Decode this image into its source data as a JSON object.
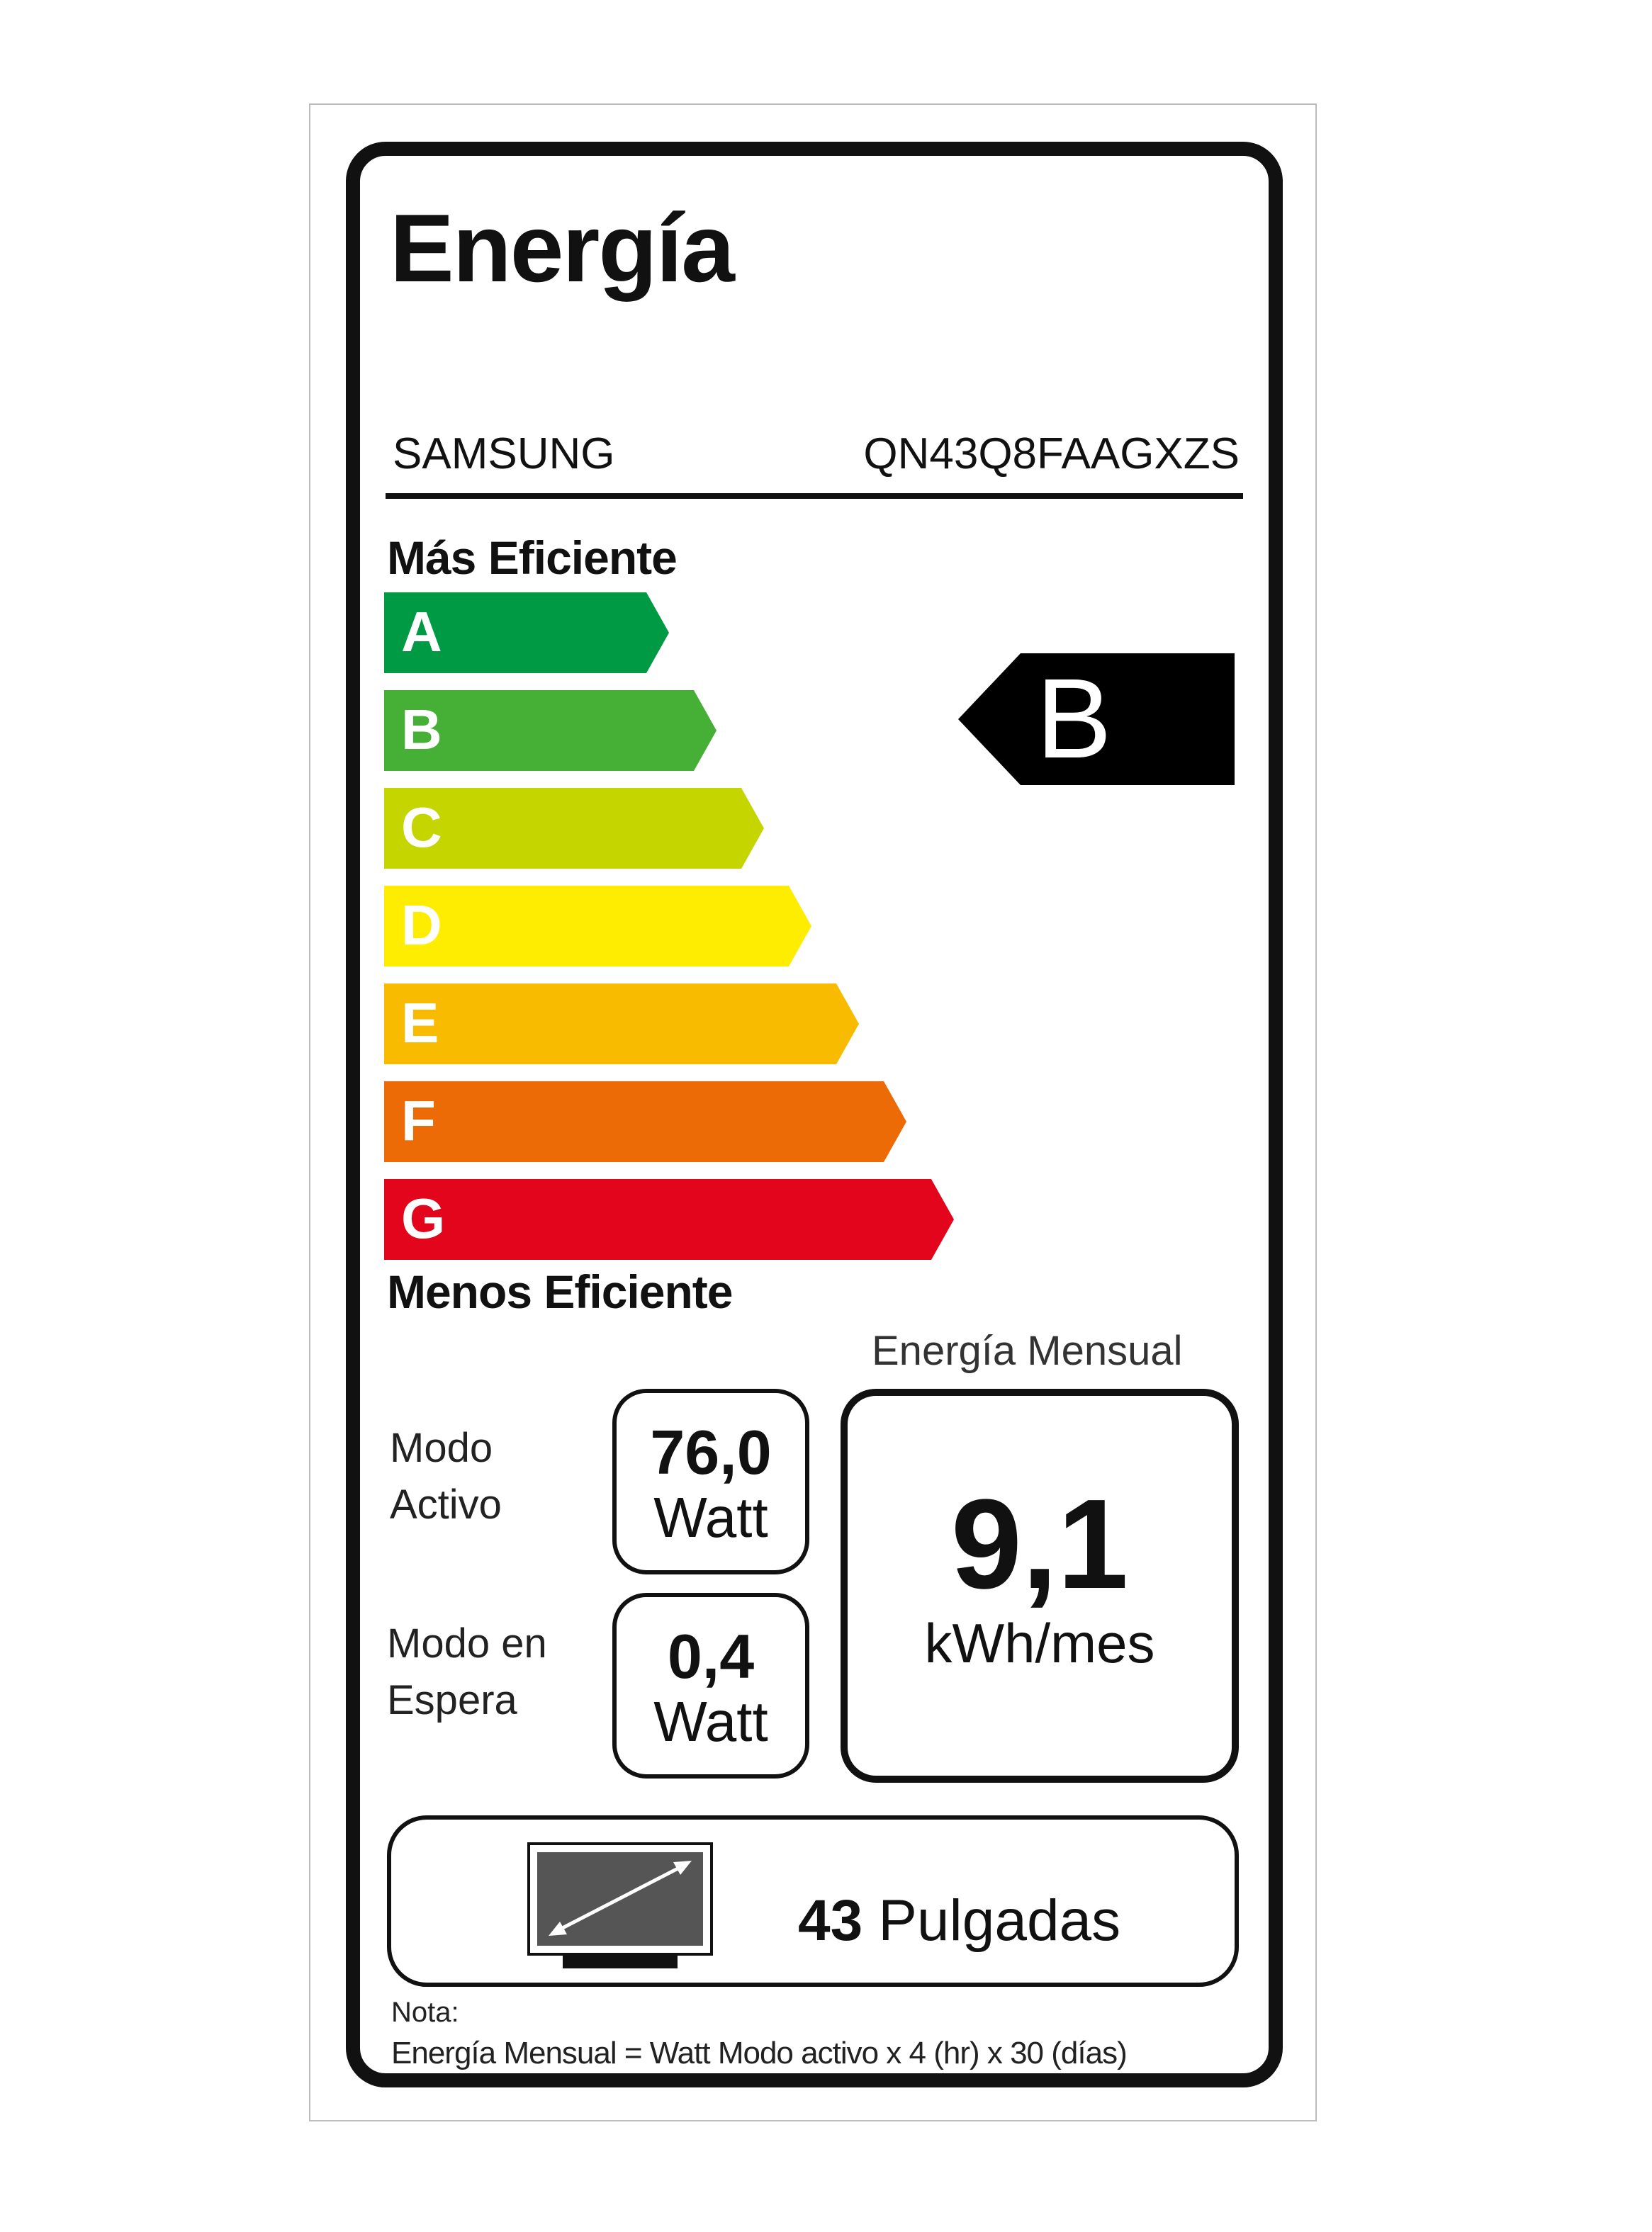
{
  "title": "Energía",
  "brand": "SAMSUNG",
  "model": "QN43Q8FAAGXZS",
  "scale_top_label": "Más Eficiente",
  "scale_bottom_label": "Menos Eficiente",
  "classes": [
    {
      "letter": "A",
      "color": "#009a44"
    },
    {
      "letter": "B",
      "color": "#45b035"
    },
    {
      "letter": "C",
      "color": "#c5d500"
    },
    {
      "letter": "D",
      "color": "#ffed00"
    },
    {
      "letter": "E",
      "color": "#f8bb00"
    },
    {
      "letter": "F",
      "color": "#ec6b06"
    },
    {
      "letter": "G",
      "color": "#e3051b"
    }
  ],
  "rating": "B",
  "active_mode": {
    "label_line1": "Modo",
    "label_line2": "Activo",
    "value": "76,0",
    "unit": "Watt"
  },
  "standby_mode": {
    "label_line1": "Modo en",
    "label_line2": "Espera",
    "value": "0,4",
    "unit": "Watt"
  },
  "monthly_energy": {
    "label": "Energía Mensual",
    "value": "9,1",
    "unit": "kWh/mes"
  },
  "screen_size": {
    "value": "43",
    "unit": "Pulgadas",
    "icon": "tv-diagonal-icon"
  },
  "note": {
    "label": "Nota:",
    "text": "Energía Mensual = Watt Modo activo x 4 (hr) x 30 (días)"
  }
}
